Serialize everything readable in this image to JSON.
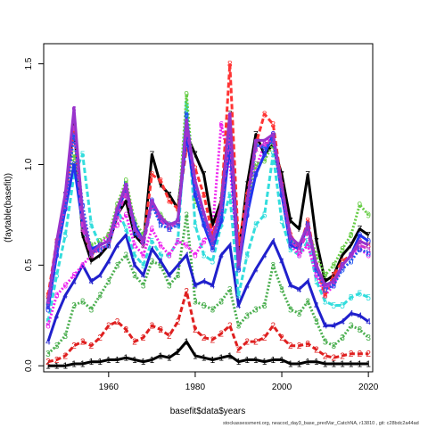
{
  "chart_data": {
    "type": "line",
    "xlabel": "basefit$data$years",
    "ylabel": "(faytable(basefit))",
    "xlim": [
      1945,
      2021
    ],
    "ylim": [
      -0.03,
      1.6
    ],
    "xticks": [
      "1960",
      "1980",
      "2000",
      "2020"
    ],
    "yticks": [
      "0.0",
      "0.5",
      "1.0",
      "1.5"
    ],
    "grid": false,
    "legend": "none",
    "x": [
      1946,
      1948,
      1950,
      1952,
      1954,
      1956,
      1958,
      1960,
      1962,
      1964,
      1966,
      1968,
      1970,
      1972,
      1974,
      1976,
      1978,
      1980,
      1982,
      1984,
      1986,
      1988,
      1990,
      1992,
      1994,
      1996,
      1998,
      2000,
      2002,
      2004,
      2006,
      2008,
      2010,
      2012,
      2014,
      2016,
      2018,
      2020
    ],
    "series": [
      {
        "symbol": "1",
        "color": "#000000",
        "values": [
          0.0,
          0.0,
          0.0,
          0.01,
          0.01,
          0.02,
          0.02,
          0.03,
          0.03,
          0.04,
          0.03,
          0.02,
          0.03,
          0.05,
          0.04,
          0.07,
          0.12,
          0.05,
          0.04,
          0.03,
          0.04,
          0.05,
          0.02,
          0.03,
          0.03,
          0.02,
          0.03,
          0.03,
          0.01,
          0.01,
          0.02,
          0.02,
          0.01,
          0.01,
          0.01,
          0.01,
          0.01,
          0.01
        ]
      },
      {
        "symbol": "2",
        "color": "#df2020",
        "values": [
          0.02,
          0.03,
          0.05,
          0.1,
          0.12,
          0.1,
          0.14,
          0.2,
          0.22,
          0.18,
          0.12,
          0.14,
          0.2,
          0.18,
          0.15,
          0.22,
          0.37,
          0.18,
          0.14,
          0.13,
          0.16,
          0.2,
          0.08,
          0.12,
          0.12,
          0.14,
          0.2,
          0.14,
          0.1,
          0.1,
          0.11,
          0.08,
          0.05,
          0.04,
          0.05,
          0.06,
          0.06,
          0.06
        ]
      },
      {
        "symbol": "3",
        "color": "#4caf50",
        "values": [
          0.06,
          0.1,
          0.15,
          0.3,
          0.32,
          0.28,
          0.35,
          0.42,
          0.5,
          0.55,
          0.45,
          0.4,
          0.52,
          0.5,
          0.4,
          0.45,
          0.75,
          0.32,
          0.3,
          0.28,
          0.32,
          0.38,
          0.2,
          0.25,
          0.28,
          0.3,
          0.5,
          0.38,
          0.28,
          0.26,
          0.32,
          0.22,
          0.12,
          0.1,
          0.14,
          0.2,
          0.18,
          0.14
        ]
      },
      {
        "symbol": "4",
        "color": "#2020cc",
        "values": [
          0.12,
          0.25,
          0.35,
          0.42,
          0.5,
          0.42,
          0.45,
          0.52,
          0.6,
          0.65,
          0.5,
          0.45,
          0.58,
          0.52,
          0.45,
          0.5,
          0.55,
          0.4,
          0.42,
          0.4,
          0.55,
          0.6,
          0.3,
          0.4,
          0.48,
          0.55,
          0.62,
          0.52,
          0.4,
          0.38,
          0.42,
          0.3,
          0.2,
          0.2,
          0.22,
          0.26,
          0.25,
          0.22
        ]
      },
      {
        "symbol": "5",
        "color": "#33dddd",
        "values": [
          0.22,
          0.45,
          0.65,
          0.95,
          1.05,
          0.7,
          0.6,
          0.62,
          0.78,
          0.68,
          0.55,
          0.5,
          0.62,
          0.55,
          0.55,
          0.62,
          1.3,
          0.7,
          0.55,
          0.52,
          0.7,
          0.85,
          0.35,
          0.55,
          0.7,
          0.75,
          1.05,
          0.72,
          0.58,
          0.55,
          0.62,
          0.42,
          0.32,
          0.3,
          0.3,
          0.34,
          0.36,
          0.34
        ]
      },
      {
        "symbol": "6",
        "color": "#ee22ee",
        "values": [
          0.2,
          0.35,
          0.4,
          0.45,
          0.5,
          0.55,
          0.6,
          0.65,
          0.7,
          0.75,
          0.6,
          0.55,
          0.68,
          0.6,
          0.55,
          0.62,
          0.6,
          0.55,
          0.62,
          0.68,
          1.2,
          1.0,
          0.5,
          0.75,
          0.98,
          1.1,
          1.15,
          0.85,
          0.6,
          0.55,
          0.6,
          0.45,
          0.35,
          0.4,
          0.5,
          0.55,
          0.58,
          0.55
        ]
      },
      {
        "symbol": "7",
        "color": "#000000",
        "values": [
          0.32,
          0.6,
          0.85,
          1.2,
          0.65,
          0.52,
          0.55,
          0.6,
          0.75,
          0.82,
          0.65,
          0.6,
          1.05,
          0.9,
          0.85,
          0.78,
          1.15,
          1.05,
          0.95,
          0.7,
          0.82,
          1.25,
          0.55,
          0.9,
          1.15,
          1.05,
          1.1,
          0.95,
          0.72,
          0.68,
          0.95,
          0.62,
          0.42,
          0.45,
          0.55,
          0.6,
          0.68,
          0.65
        ]
      },
      {
        "symbol": "8",
        "color": "#ff3333",
        "values": [
          0.35,
          0.62,
          0.82,
          1.18,
          0.72,
          0.55,
          0.6,
          0.62,
          0.78,
          0.9,
          0.7,
          0.62,
          0.95,
          0.92,
          0.82,
          0.78,
          1.08,
          0.98,
          0.85,
          0.65,
          0.8,
          1.5,
          0.6,
          0.85,
          1.1,
          1.25,
          1.2,
          0.9,
          0.65,
          0.58,
          0.72,
          0.5,
          0.35,
          0.45,
          0.52,
          0.55,
          0.62,
          0.6
        ]
      },
      {
        "symbol": "9",
        "color": "#66cc44",
        "values": [
          0.3,
          0.58,
          0.8,
          1.05,
          0.68,
          0.6,
          0.62,
          0.65,
          0.8,
          0.92,
          0.72,
          0.65,
          0.8,
          0.75,
          0.7,
          0.72,
          1.35,
          0.82,
          0.72,
          0.6,
          0.78,
          1.12,
          0.5,
          0.78,
          1.0,
          1.02,
          1.1,
          0.88,
          0.62,
          0.6,
          0.68,
          0.55,
          0.45,
          0.5,
          0.58,
          0.65,
          0.8,
          0.75
        ]
      },
      {
        "symbol": "0",
        "color": "#2233ee",
        "values": [
          0.28,
          0.55,
          0.78,
          1.0,
          0.7,
          0.58,
          0.6,
          0.62,
          0.76,
          0.88,
          0.7,
          0.62,
          0.82,
          0.72,
          0.7,
          0.72,
          1.15,
          0.85,
          0.7,
          0.58,
          0.72,
          1.1,
          0.48,
          0.75,
          0.95,
          1.05,
          1.15,
          0.85,
          0.6,
          0.58,
          0.7,
          0.48,
          0.4,
          0.42,
          0.5,
          0.55,
          0.65,
          0.62
        ]
      },
      {
        "symbol": "a",
        "color": "#cc33cc",
        "values": [
          0.3,
          0.6,
          0.8,
          1.22,
          0.68,
          0.55,
          0.58,
          0.6,
          0.74,
          0.86,
          0.68,
          0.6,
          0.8,
          0.72,
          0.68,
          0.72,
          1.2,
          0.9,
          0.75,
          0.6,
          0.78,
          1.15,
          0.5,
          0.8,
          1.08,
          1.1,
          1.12,
          0.88,
          0.62,
          0.58,
          0.66,
          0.5,
          0.38,
          0.42,
          0.5,
          0.55,
          0.6,
          0.58
        ]
      },
      {
        "symbol": "b",
        "color": "#2255ee",
        "values": [
          0.3,
          0.58,
          0.8,
          1.15,
          0.8,
          0.56,
          0.58,
          0.6,
          0.76,
          0.9,
          0.66,
          0.62,
          0.8,
          0.7,
          0.68,
          0.7,
          1.25,
          0.88,
          0.72,
          0.6,
          0.75,
          1.2,
          0.48,
          0.78,
          1.1,
          1.08,
          1.12,
          0.86,
          0.62,
          0.6,
          0.7,
          0.48,
          0.38,
          0.4,
          0.48,
          0.52,
          0.58,
          0.56
        ]
      },
      {
        "symbol": "c",
        "color": "#9933cc",
        "values": [
          0.32,
          0.62,
          0.86,
          1.28,
          0.75,
          0.56,
          0.6,
          0.62,
          0.78,
          0.9,
          0.68,
          0.62,
          0.82,
          0.74,
          0.7,
          0.72,
          1.22,
          0.92,
          0.76,
          0.62,
          0.8,
          1.25,
          0.5,
          0.82,
          1.12,
          1.12,
          1.15,
          0.9,
          0.64,
          0.6,
          0.7,
          0.5,
          0.4,
          0.42,
          0.5,
          0.55,
          0.62,
          0.6
        ]
      }
    ]
  },
  "footnote": "stockassessment.org, neacod_day3_base_predVar_CatchNA, r13810 , git: c28bdc2a44ad"
}
